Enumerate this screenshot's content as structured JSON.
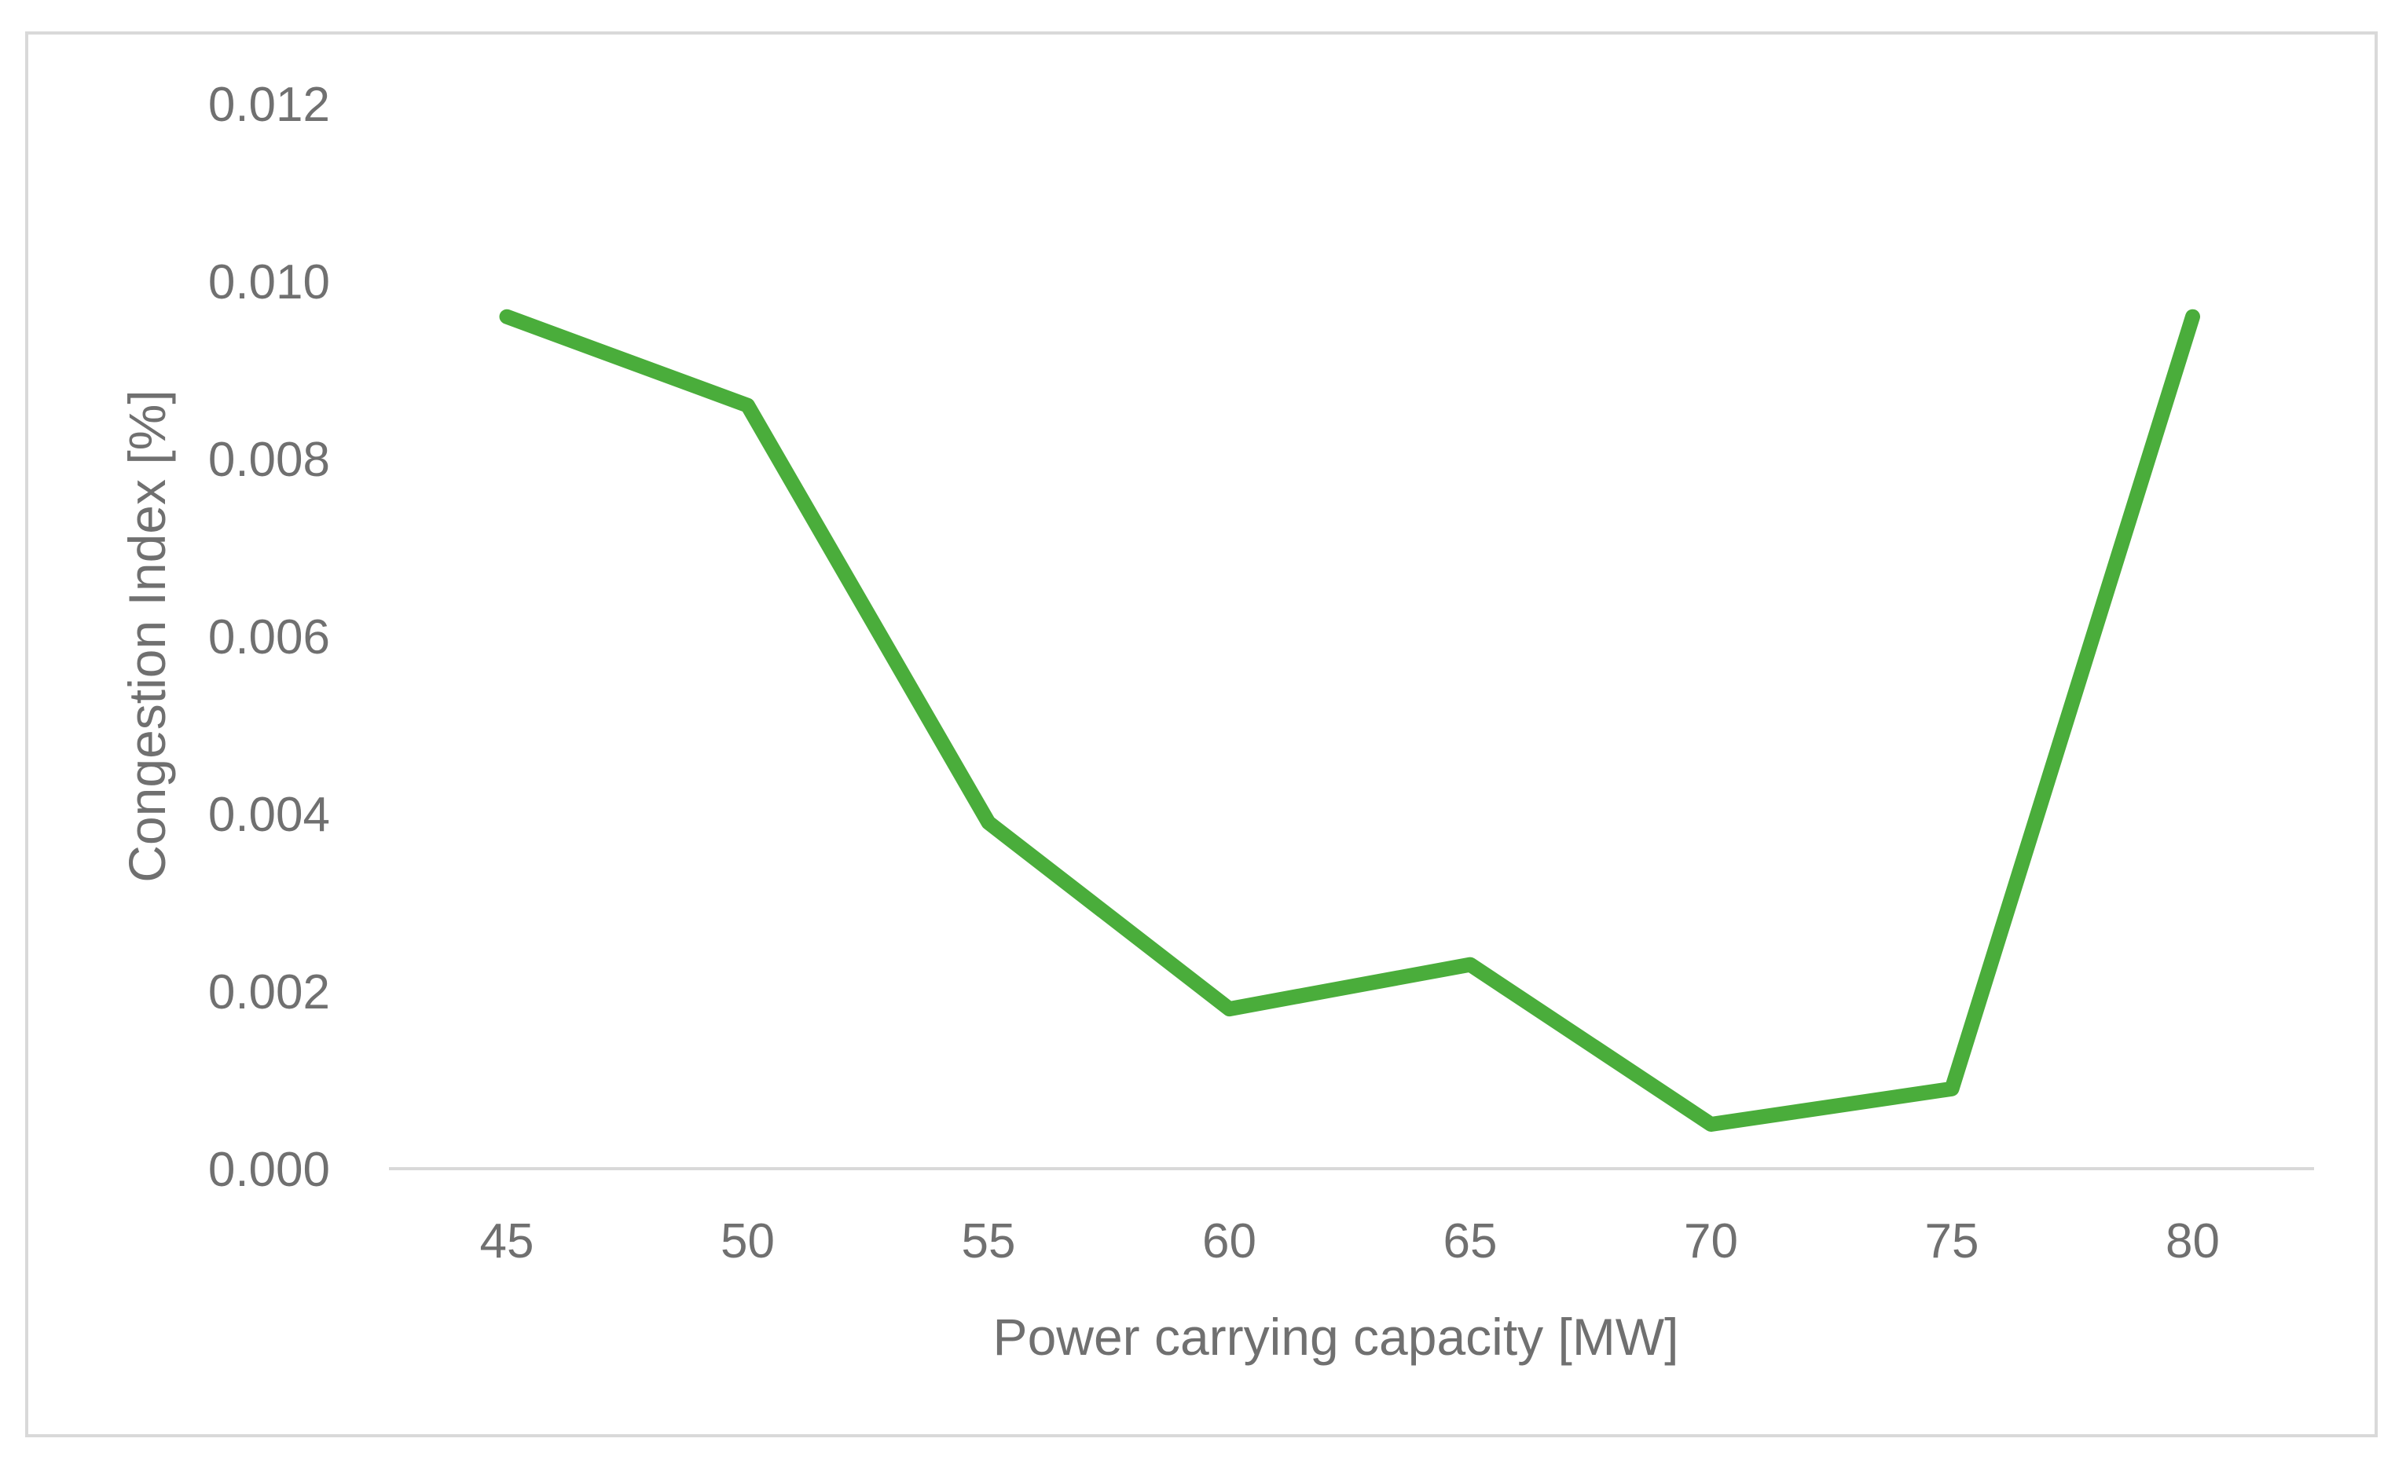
{
  "chart_data": {
    "type": "line",
    "title": "",
    "xlabel": "Power carrying capacity [MW]",
    "ylabel": "Congestion Index [%]",
    "categories": [
      "45",
      "50",
      "55",
      "60",
      "65",
      "70",
      "75",
      "80"
    ],
    "series": [
      {
        "values": [
          0.0096,
          0.0086,
          0.0039,
          0.0018,
          0.0023,
          0.0005,
          0.0009,
          0.0096
        ]
      }
    ],
    "y_ticks": [
      "0.000",
      "0.002",
      "0.004",
      "0.006",
      "0.008",
      "0.010",
      "0.012"
    ],
    "ylim": [
      0,
      0.012
    ],
    "grid": false,
    "legend": "none",
    "colors": {
      "line": "#4aad3b",
      "axis": "#d9d9d9",
      "text": "#707070"
    }
  }
}
